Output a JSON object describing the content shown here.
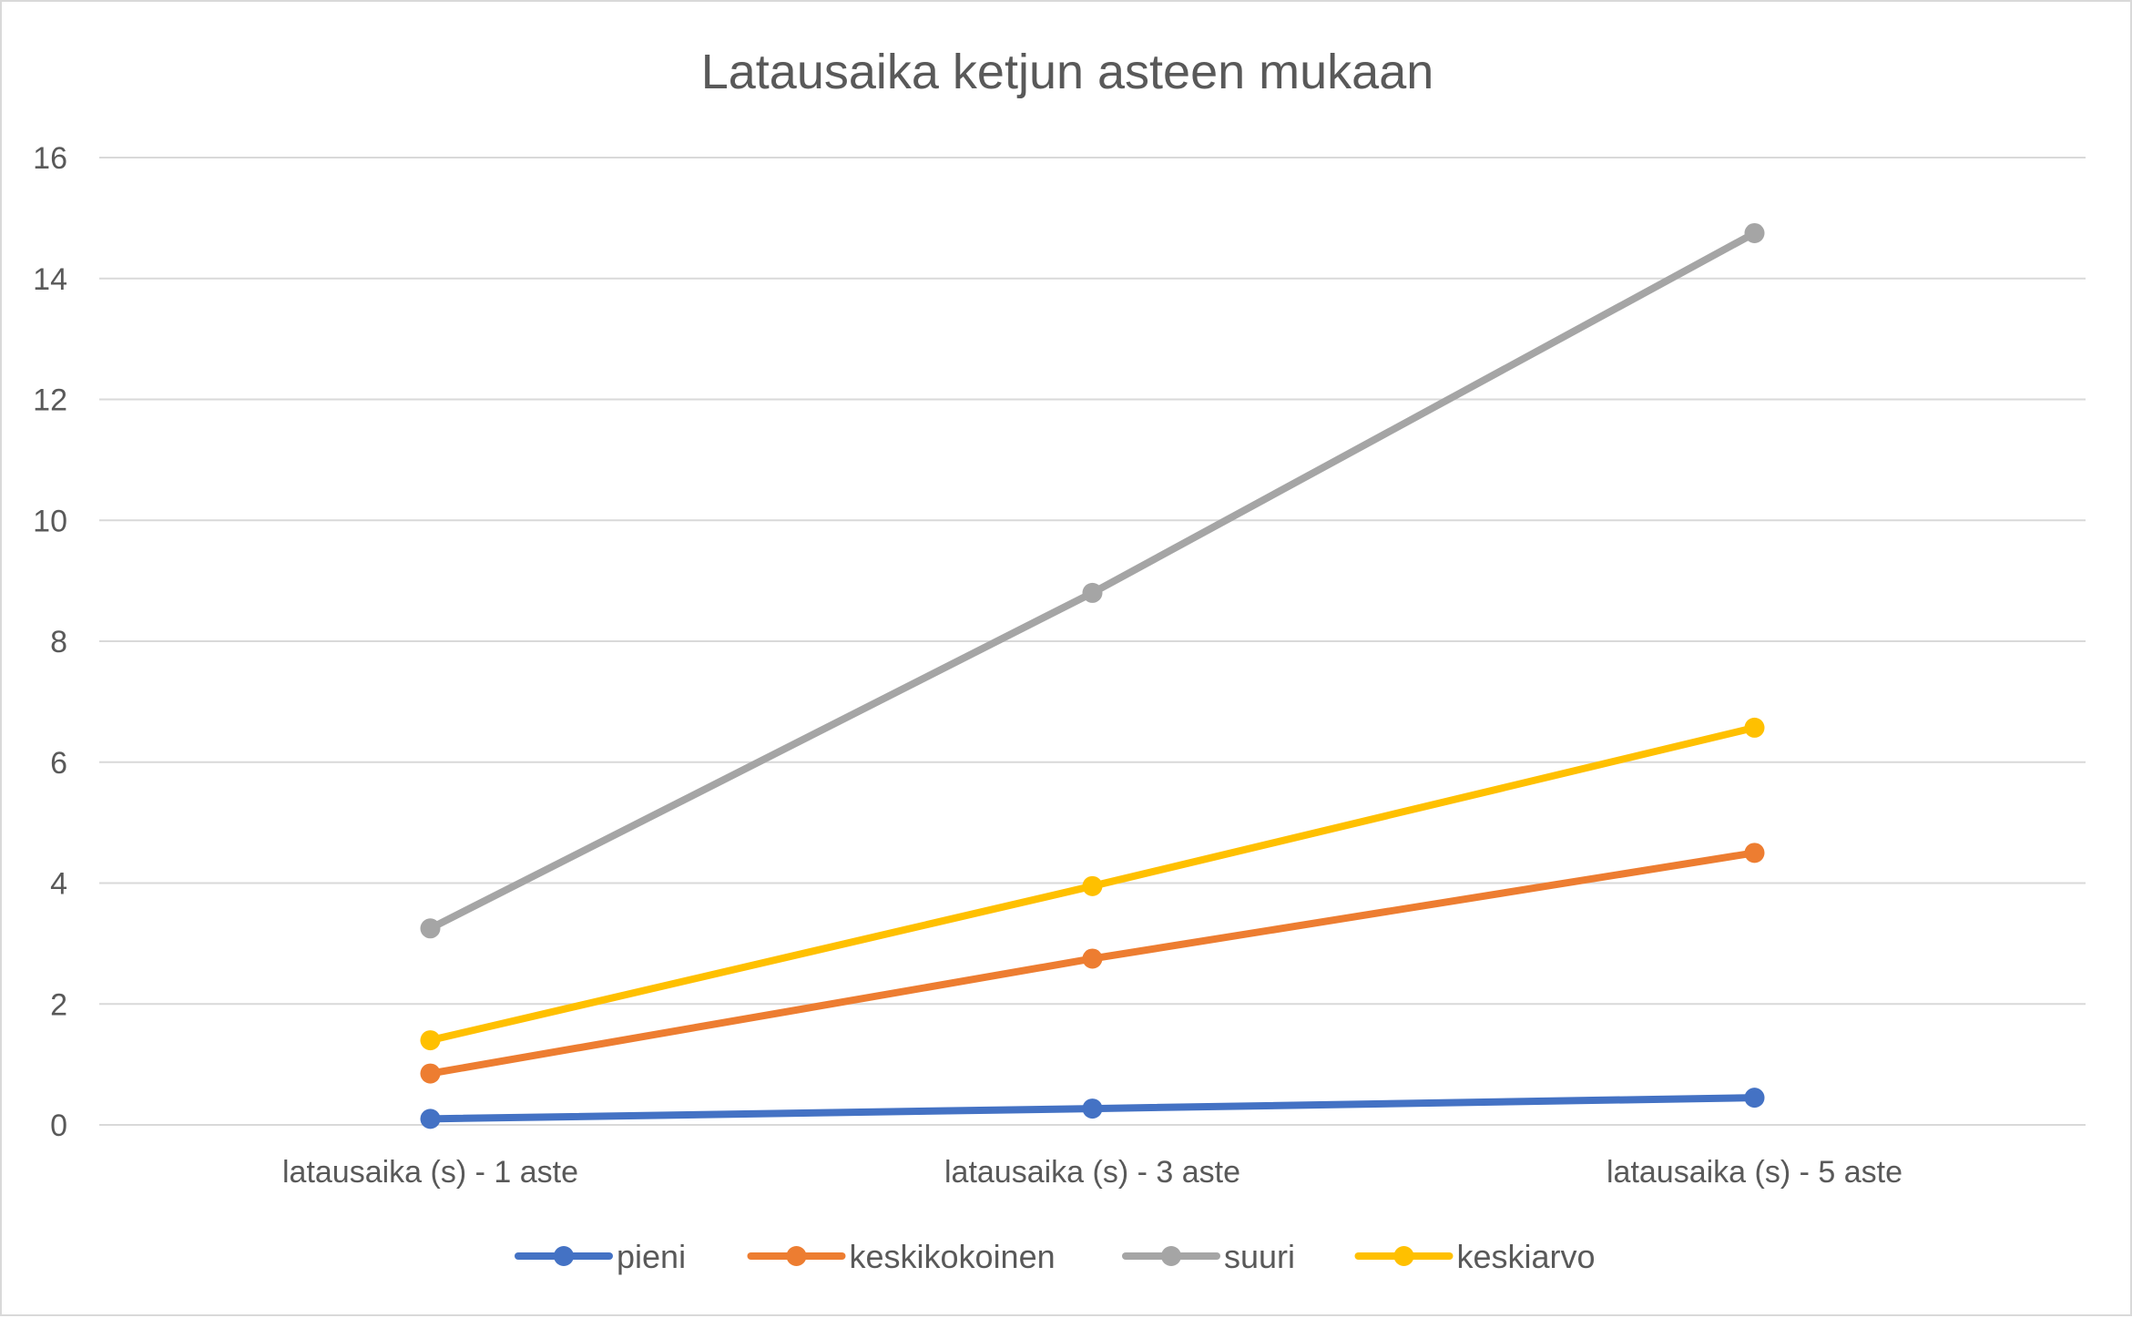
{
  "chart_data": {
    "type": "line",
    "title": "Latausaika ketjun asteen mukaan",
    "xlabel": "",
    "ylabel": "",
    "categories": [
      "latausaika (s) - 1 aste",
      "latausaika (s) - 3 aste",
      "latausaika (s) - 5 aste"
    ],
    "ylim": [
      0,
      16
    ],
    "yticks": [
      0,
      2,
      4,
      6,
      8,
      10,
      12,
      14,
      16
    ],
    "grid": true,
    "legend_position": "bottom",
    "series": [
      {
        "name": "pieni",
        "color": "#4472c4",
        "values": [
          0.1,
          0.27,
          0.45
        ]
      },
      {
        "name": "keskikokoinen",
        "color": "#ed7d31",
        "values": [
          0.85,
          2.75,
          4.5
        ]
      },
      {
        "name": "suuri",
        "color": "#a5a5a5",
        "values": [
          3.25,
          8.8,
          14.75
        ]
      },
      {
        "name": "keskiarvo",
        "color": "#ffc000",
        "values": [
          1.4,
          3.95,
          6.57
        ]
      }
    ]
  }
}
